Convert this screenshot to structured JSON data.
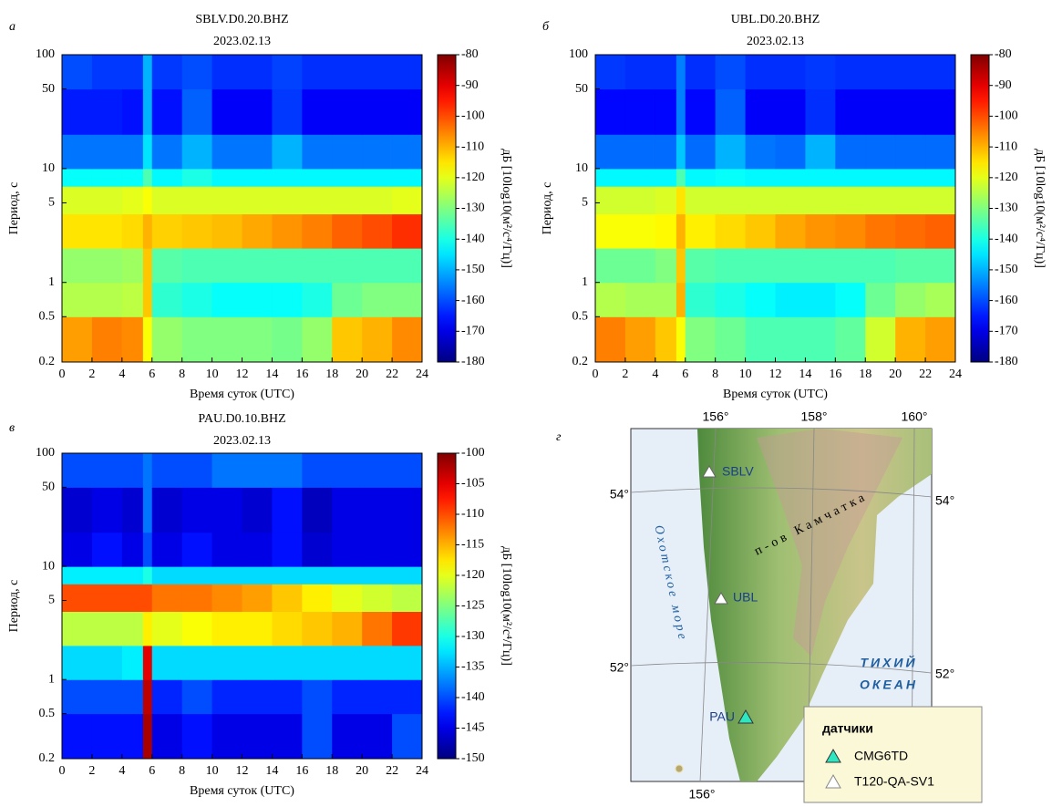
{
  "chart_data": [
    {
      "type": "heatmap",
      "panel_label": "а",
      "title": "SBLV.D0.20.BHZ",
      "subtitle": "2023.02.13",
      "xlabel": "Время суток (UTC)",
      "ylabel": "Период, с",
      "y_scale": "log",
      "colormap": "jet",
      "x_bins": [
        0,
        2,
        4,
        5.4,
        6,
        8,
        10,
        12,
        14,
        16,
        18,
        20,
        22,
        24
      ],
      "y_bins": [
        0.2,
        0.5,
        1,
        2,
        4,
        7,
        10,
        20,
        50,
        100
      ],
      "values": [
        [
          -108,
          -105,
          -106,
          -118,
          -128,
          -130,
          -130,
          -130,
          -131,
          -128,
          -112,
          -110,
          -106
        ],
        [
          -125,
          -125,
          -124,
          -112,
          -138,
          -140,
          -142,
          -142,
          -142,
          -140,
          -132,
          -130,
          -130
        ],
        [
          -128,
          -128,
          -127,
          -112,
          -134,
          -135,
          -135,
          -135,
          -135,
          -135,
          -135,
          -135,
          -135
        ],
        [
          -115,
          -115,
          -114,
          -110,
          -113,
          -112,
          -111,
          -109,
          -107,
          -105,
          -102,
          -100,
          -97
        ],
        [
          -121,
          -121,
          -120,
          -118,
          -121,
          -121,
          -121,
          -121,
          -121,
          -121,
          -121,
          -121,
          -120
        ],
        [
          -142,
          -142,
          -142,
          -135,
          -143,
          -140,
          -143,
          -143,
          -143,
          -143,
          -143,
          -143,
          -143
        ],
        [
          -156,
          -156,
          -156,
          -145,
          -156,
          -150,
          -156,
          -156,
          -150,
          -156,
          -156,
          -156,
          -156
        ],
        [
          -165,
          -165,
          -166,
          -150,
          -166,
          -158,
          -168,
          -168,
          -162,
          -168,
          -168,
          -168,
          -168
        ],
        [
          -160,
          -162,
          -162,
          -150,
          -162,
          -160,
          -163,
          -163,
          -161,
          -163,
          -163,
          -163,
          -163
        ]
      ],
      "xlim": [
        0,
        24
      ],
      "xticks": [
        0,
        2,
        4,
        6,
        8,
        10,
        12,
        14,
        16,
        18,
        20,
        22,
        24
      ],
      "ylim": [
        0.2,
        100
      ],
      "yticks": [
        0.2,
        0.5,
        1,
        5,
        10,
        50,
        100
      ],
      "colorbar": {
        "label": "дБ [10log10(м²/с⁴/Гц)]",
        "lim": [
          -180,
          -80
        ],
        "ticks": [
          -80,
          -90,
          -100,
          -110,
          -120,
          -130,
          -140,
          -150,
          -160,
          -170,
          -180
        ]
      }
    },
    {
      "type": "heatmap",
      "panel_label": "б",
      "title": "UBL.D0.20.BHZ",
      "subtitle": "2023.02.13",
      "xlabel": "Время суток (UTC)",
      "ylabel": "Период, с",
      "y_scale": "log",
      "colormap": "jet",
      "x_bins": [
        0,
        2,
        4,
        5.4,
        6,
        8,
        10,
        12,
        14,
        16,
        18,
        20,
        22,
        24
      ],
      "y_bins": [
        0.2,
        0.5,
        1,
        2,
        4,
        7,
        10,
        20,
        50,
        100
      ],
      "values": [
        [
          -105,
          -108,
          -112,
          -118,
          -130,
          -132,
          -135,
          -135,
          -135,
          -133,
          -122,
          -110,
          -108
        ],
        [
          -125,
          -126,
          -126,
          -110,
          -138,
          -140,
          -142,
          -144,
          -144,
          -142,
          -132,
          -128,
          -126
        ],
        [
          -132,
          -132,
          -130,
          -112,
          -134,
          -135,
          -135,
          -135,
          -135,
          -135,
          -135,
          -134,
          -134
        ],
        [
          -118,
          -118,
          -117,
          -110,
          -116,
          -114,
          -112,
          -109,
          -107,
          -106,
          -104,
          -103,
          -102
        ],
        [
          -122,
          -122,
          -121,
          -115,
          -122,
          -122,
          -122,
          -122,
          -122,
          -122,
          -122,
          -122,
          -122
        ],
        [
          -143,
          -143,
          -143,
          -135,
          -143,
          -142,
          -143,
          -143,
          -143,
          -143,
          -143,
          -143,
          -143
        ],
        [
          -157,
          -157,
          -157,
          -148,
          -157,
          -150,
          -156,
          -157,
          -150,
          -157,
          -157,
          -157,
          -157
        ],
        [
          -167,
          -167,
          -167,
          -155,
          -167,
          -158,
          -168,
          -168,
          -163,
          -168,
          -168,
          -168,
          -168
        ],
        [
          -162,
          -163,
          -163,
          -155,
          -163,
          -160,
          -163,
          -163,
          -162,
          -163,
          -163,
          -163,
          -163
        ]
      ],
      "xlim": [
        0,
        24
      ],
      "xticks": [
        0,
        2,
        4,
        6,
        8,
        10,
        12,
        14,
        16,
        18,
        20,
        22,
        24
      ],
      "ylim": [
        0.2,
        100
      ],
      "yticks": [
        0.2,
        0.5,
        1,
        5,
        10,
        50,
        100
      ],
      "colorbar": {
        "label": "дБ [10log10(м²/с⁴/Гц)]",
        "lim": [
          -180,
          -80
        ],
        "ticks": [
          -80,
          -90,
          -100,
          -110,
          -120,
          -130,
          -140,
          -150,
          -160,
          -170,
          -180
        ]
      }
    },
    {
      "type": "heatmap",
      "panel_label": "в",
      "title": "PAU.D0.10.BHZ",
      "subtitle": "2023.02.13",
      "xlabel": "Время суток (UTC)",
      "ylabel": "Период, с",
      "y_scale": "log",
      "colormap": "jet",
      "x_bins": [
        0,
        2,
        4,
        5.4,
        6,
        8,
        10,
        12,
        14,
        16,
        18,
        20,
        22,
        24
      ],
      "y_bins": [
        0.2,
        0.5,
        1,
        2,
        4,
        7,
        10,
        20,
        50,
        100
      ],
      "values": [
        [
          -143,
          -143,
          -143,
          -102,
          -145,
          -143,
          -145,
          -145,
          -145,
          -140,
          -145,
          -145,
          -140
        ],
        [
          -140,
          -140,
          -140,
          -103,
          -142,
          -140,
          -142,
          -142,
          -142,
          -140,
          -142,
          -142,
          -142
        ],
        [
          -133,
          -133,
          -132,
          -105,
          -133,
          -133,
          -133,
          -133,
          -133,
          -133,
          -133,
          -133,
          -133
        ],
        [
          -122,
          -122,
          -122,
          -118,
          -120,
          -119,
          -118,
          -118,
          -117,
          -116,
          -115,
          -112,
          -109
        ],
        [
          -110,
          -110,
          -110,
          -110,
          -112,
          -112,
          -113,
          -114,
          -116,
          -118,
          -120,
          -121,
          -122
        ],
        [
          -132,
          -132,
          -132,
          -130,
          -133,
          -133,
          -133,
          -133,
          -133,
          -133,
          -133,
          -133,
          -133
        ],
        [
          -145,
          -143,
          -145,
          -140,
          -145,
          -143,
          -145,
          -145,
          -143,
          -146,
          -145,
          -145,
          -145
        ],
        [
          -146,
          -145,
          -146,
          -138,
          -146,
          -145,
          -145,
          -146,
          -143,
          -147,
          -145,
          -145,
          -145
        ],
        [
          -140,
          -140,
          -140,
          -138,
          -140,
          -140,
          -138,
          -138,
          -138,
          -140,
          -140,
          -140,
          -140
        ]
      ],
      "xlim": [
        0,
        24
      ],
      "xticks": [
        0,
        2,
        4,
        6,
        8,
        10,
        12,
        14,
        16,
        18,
        20,
        22,
        24
      ],
      "ylim": [
        0.2,
        100
      ],
      "yticks": [
        0.2,
        0.5,
        1,
        5,
        10,
        50,
        100
      ],
      "colorbar": {
        "label": "дБ [10log10(м²/с⁴/Гц)]",
        "lim": [
          -150,
          -100
        ],
        "ticks": [
          -100,
          -105,
          -110,
          -115,
          -120,
          -125,
          -130,
          -135,
          -140,
          -145,
          -150
        ]
      }
    }
  ],
  "map": {
    "panel_label": "г",
    "lon_labels_top": [
      "156°",
      "158°",
      "160°"
    ],
    "lon_labels_bottom": [
      "156°"
    ],
    "lat_labels_left": [
      "54°",
      "52°"
    ],
    "lat_labels_right": [
      "54°",
      "52°"
    ],
    "peninsula": "п-ов Камчатка",
    "sea": "Охотское море",
    "ocean": [
      "ТИХИЙ",
      "ОКЕАН"
    ],
    "stations": [
      "SBLV",
      "UBL",
      "PAU"
    ],
    "legend": {
      "title": "датчики",
      "entries": [
        "CMG6TD",
        "T120-QA-SV1"
      ]
    }
  }
}
